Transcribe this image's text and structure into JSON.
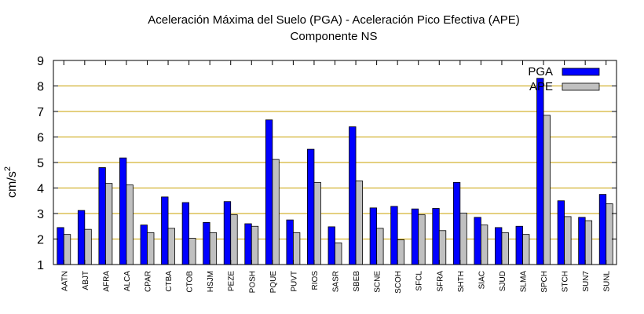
{
  "chart_data": {
    "type": "bar",
    "title": "Aceleración Máxima del Suelo (PGA) -  Aceleración Pico Efectiva (APE)",
    "subtitle": "Componente NS",
    "ylabel": "cm/s",
    "ylabel_sup": "2",
    "xlabel": "",
    "ylim": [
      1,
      9
    ],
    "yticks": [
      1,
      2,
      3,
      4,
      5,
      6,
      7,
      8,
      9
    ],
    "grid": true,
    "legend_position": "top-right",
    "colors": {
      "PGA": "#0000ff",
      "APE": "#c0c0c0",
      "grid": "#c8a000"
    },
    "categories": [
      "AATN",
      "ABJT",
      "AFRA",
      "ALCA",
      "CPAR",
      "CTBA",
      "CTOB",
      "HSJM",
      "PEZE",
      "POSH",
      "PQUE",
      "PUVT",
      "RIOS",
      "SASR",
      "SBEB",
      "SCNE",
      "SCOH",
      "SFCL",
      "SFRA",
      "SHTH",
      "SIAC",
      "SJUD",
      "SLMA",
      "SPCH",
      "STCH",
      "SUN7",
      "SUNL"
    ],
    "series": [
      {
        "name": "PGA",
        "values": [
          2.45,
          3.12,
          4.8,
          5.18,
          2.55,
          3.65,
          3.43,
          2.65,
          3.47,
          2.6,
          6.67,
          2.75,
          5.52,
          2.48,
          6.4,
          3.22,
          3.28,
          3.18,
          3.2,
          4.22,
          2.85,
          2.45,
          2.5,
          8.3,
          3.5,
          2.85,
          3.75
        ]
      },
      {
        "name": "APE",
        "values": [
          2.18,
          2.38,
          4.18,
          4.12,
          2.25,
          2.42,
          2.03,
          2.25,
          2.95,
          2.5,
          5.12,
          2.25,
          4.22,
          1.85,
          4.28,
          2.42,
          1.97,
          2.95,
          2.33,
          3.02,
          2.55,
          2.25,
          2.18,
          6.85,
          2.88,
          2.72,
          3.38
        ]
      }
    ]
  }
}
